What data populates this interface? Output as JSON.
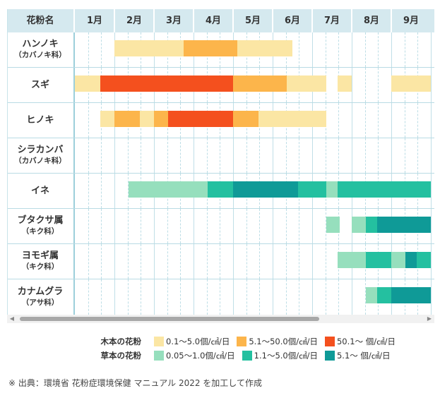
{
  "header": {
    "name_label": "花粉名",
    "months": [
      "1月",
      "2月",
      "3月",
      "4月",
      "5月",
      "6月",
      "7月",
      "8月",
      "9月"
    ]
  },
  "colors": {
    "wood_low": "#fbe6a4",
    "wood_mid": "#fcb54b",
    "wood_high": "#f4501e",
    "grass_low": "#96dfbd",
    "grass_mid": "#24c0a0",
    "grass_high": "#0f9a97"
  },
  "chart_data": {
    "type": "table",
    "unit": "month",
    "plants": [
      {
        "name": "ハンノキ",
        "family": "（カバノキ科）",
        "bars": [
          {
            "start": 1.0,
            "end": 2.75,
            "level": "wood_low"
          },
          {
            "start": 2.75,
            "end": 4.1,
            "level": "wood_mid"
          },
          {
            "start": 4.1,
            "end": 5.5,
            "level": "wood_low"
          }
        ]
      },
      {
        "name": "スギ",
        "family": "",
        "bars": [
          {
            "start": 0.0,
            "end": 0.65,
            "level": "wood_low"
          },
          {
            "start": 0.65,
            "end": 4.0,
            "level": "wood_high"
          },
          {
            "start": 4.0,
            "end": 5.35,
            "level": "wood_mid"
          },
          {
            "start": 5.35,
            "end": 6.35,
            "level": "wood_low"
          },
          {
            "start": 6.65,
            "end": 7.0,
            "level": "wood_low"
          },
          {
            "start": 8.0,
            "end": 9.0,
            "level": "wood_low"
          }
        ]
      },
      {
        "name": "ヒノキ",
        "family": "",
        "bars": [
          {
            "start": 0.65,
            "end": 1.0,
            "level": "wood_low"
          },
          {
            "start": 1.0,
            "end": 1.65,
            "level": "wood_mid"
          },
          {
            "start": 1.65,
            "end": 2.0,
            "level": "wood_low"
          },
          {
            "start": 2.0,
            "end": 2.35,
            "level": "wood_mid"
          },
          {
            "start": 2.35,
            "end": 4.0,
            "level": "wood_high"
          },
          {
            "start": 4.0,
            "end": 4.65,
            "level": "wood_mid"
          },
          {
            "start": 4.65,
            "end": 6.35,
            "level": "wood_low"
          }
        ]
      },
      {
        "name": "シラカンバ",
        "family": "（カバノキ科）",
        "bars": []
      },
      {
        "name": "イネ",
        "family": "",
        "bars": [
          {
            "start": 1.35,
            "end": 3.35,
            "level": "grass_low"
          },
          {
            "start": 3.35,
            "end": 4.0,
            "level": "grass_mid"
          },
          {
            "start": 4.0,
            "end": 5.65,
            "level": "grass_high"
          },
          {
            "start": 5.65,
            "end": 6.35,
            "level": "grass_mid"
          },
          {
            "start": 6.35,
            "end": 6.65,
            "level": "grass_low"
          },
          {
            "start": 6.65,
            "end": 9.0,
            "level": "grass_mid"
          }
        ]
      },
      {
        "name": "ブタクサ属",
        "family": "（キク科）",
        "bars": [
          {
            "start": 6.35,
            "end": 6.7,
            "level": "grass_low"
          },
          {
            "start": 7.0,
            "end": 7.35,
            "level": "grass_low"
          },
          {
            "start": 7.35,
            "end": 7.65,
            "level": "grass_mid"
          },
          {
            "start": 7.65,
            "end": 9.0,
            "level": "grass_high"
          }
        ]
      },
      {
        "name": "ヨモギ属",
        "family": "（キク科）",
        "bars": [
          {
            "start": 6.65,
            "end": 7.35,
            "level": "grass_low"
          },
          {
            "start": 7.35,
            "end": 8.0,
            "level": "grass_mid"
          },
          {
            "start": 8.0,
            "end": 8.35,
            "level": "grass_low"
          },
          {
            "start": 8.35,
            "end": 8.65,
            "level": "grass_high"
          },
          {
            "start": 8.65,
            "end": 9.0,
            "level": "grass_mid"
          }
        ]
      },
      {
        "name": "カナムグラ",
        "family": "（アサ科）",
        "bars": [
          {
            "start": 7.35,
            "end": 7.65,
            "level": "grass_low"
          },
          {
            "start": 7.65,
            "end": 8.0,
            "level": "grass_mid"
          },
          {
            "start": 8.0,
            "end": 9.0,
            "level": "grass_high"
          }
        ]
      }
    ]
  },
  "scrollbar": {
    "left_arrow": "◀",
    "right_arrow": "▶"
  },
  "legend": {
    "wood": {
      "title": "木本の花粉",
      "items": [
        {
          "label": "0.1～5.0個/㎠/日",
          "color_key": "wood_low"
        },
        {
          "label": "5.1～50.0個/㎠/日",
          "color_key": "wood_mid"
        },
        {
          "label": "50.1～ 個/㎠/日",
          "color_key": "wood_high"
        }
      ]
    },
    "grass": {
      "title": "草本の花粉",
      "items": [
        {
          "label": "0.05～1.0個/㎠/日",
          "color_key": "grass_low"
        },
        {
          "label": "1.1～5.0個/㎠/日",
          "color_key": "grass_mid"
        },
        {
          "label": "5.1～ 個/㎠/日",
          "color_key": "grass_high"
        }
      ]
    }
  },
  "footnote": "※ 出典：環境省 花粉症環境保健 マニュアル 2022 を加工して作成"
}
